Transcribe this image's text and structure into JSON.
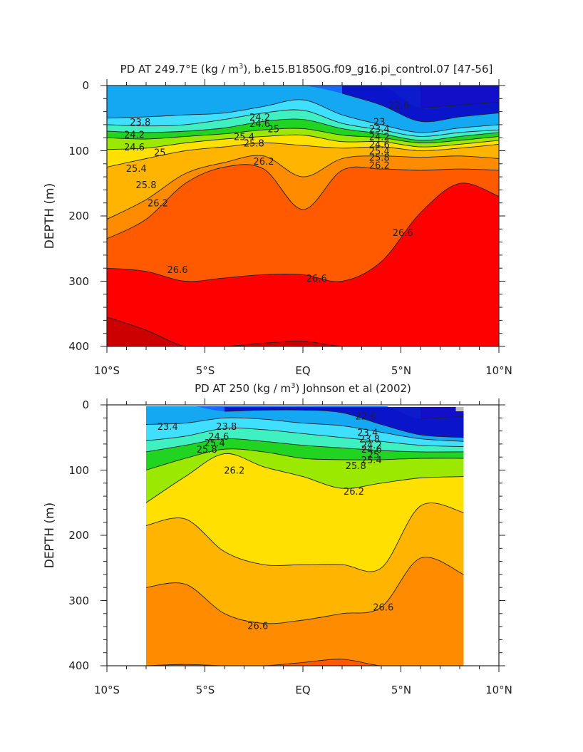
{
  "figure": {
    "panels": [
      {
        "title_pre": "PD AT 249.7°E (kg / m",
        "title_sup": "3",
        "title_post": "), b.e15.B1850G.f09_g16.pi_control.07 [47-56]"
      },
      {
        "title_pre": "PD AT 250 (kg / m",
        "title_sup": "3",
        "title_post": ") Johnson et al (2002)"
      }
    ],
    "ylabel": "DEPTH (m)",
    "xticks": [
      "10°S",
      "5°S",
      "EQ",
      "5°N",
      "10°N"
    ],
    "yticks": [
      "0",
      "100",
      "200",
      "300",
      "400"
    ]
  },
  "colors": {
    "levels_kg_m3": [
      22.0,
      22.4,
      22.8,
      23.2,
      23.6,
      24.0,
      24.4,
      24.8,
      25.2,
      25.6,
      26.0,
      26.4,
      26.8
    ],
    "fills": [
      "#cc00cc",
      "#7a00d6",
      "#0a10c8",
      "#1668ff",
      "#14a8f2",
      "#3fe0ff",
      "#3ff0c0",
      "#21d421",
      "#9be800",
      "#ffe000",
      "#ffb400",
      "#ff8c00",
      "#ff5a00",
      "#ff0000",
      "#cc0000"
    ],
    "contour_line": "#222222",
    "missing_region": "#bdbdbd"
  },
  "chart_data": [
    {
      "type": "heatmap",
      "subtype": "filled contour section",
      "x_axis": {
        "units": "latitude (degrees, negative = S)",
        "range": [
          -10,
          10
        ],
        "tick_labels": [
          "10°S",
          "5°S",
          "EQ",
          "5°N",
          "10°N"
        ]
      },
      "y_axis": {
        "label": "DEPTH (m)",
        "range": [
          0,
          400
        ],
        "inverted": true
      },
      "x_coverage": [
        -10,
        10
      ],
      "x": [
        -10,
        -8,
        -6,
        -4,
        -2,
        0,
        2,
        4,
        6,
        8,
        10
      ],
      "isopycnal_depths_m": [
        {
          "level": 22.0,
          "depth": [
            null,
            null,
            null,
            null,
            null,
            null,
            null,
            null,
            35,
            30,
            25
          ]
        },
        {
          "level": 23.0,
          "depth": [
            null,
            null,
            null,
            null,
            null,
            null,
            12,
            30,
            55,
            48,
            42
          ]
        },
        {
          "level": 23.8,
          "depth": [
            50,
            48,
            45,
            42,
            32,
            22,
            45,
            60,
            72,
            65,
            60
          ]
        },
        {
          "level": 24.2,
          "depth": [
            60,
            62,
            60,
            52,
            42,
            38,
            58,
            68,
            78,
            72,
            68
          ]
        },
        {
          "level": 24.6,
          "depth": [
            70,
            72,
            70,
            65,
            55,
            52,
            66,
            74,
            84,
            78,
            72
          ]
        },
        {
          "level": 25.0,
          "depth": [
            80,
            82,
            78,
            74,
            68,
            66,
            76,
            80,
            88,
            84,
            78
          ]
        },
        {
          "level": 25.4,
          "depth": [
            98,
            96,
            88,
            82,
            78,
            76,
            86,
            86,
            94,
            90,
            84
          ]
        },
        {
          "level": 25.8,
          "depth": [
            125,
            112,
            100,
            94,
            88,
            92,
            96,
            94,
            100,
            96,
            90
          ]
        },
        {
          "level": 26.2,
          "depth": [
            205,
            175,
            135,
            118,
            108,
            140,
            112,
            108,
            110,
            108,
            112
          ]
        },
        {
          "level": 26.4,
          "depth": [
            235,
            205,
            150,
            125,
            128,
            190,
            130,
            128,
            130,
            128,
            130
          ]
        },
        {
          "level": 26.6,
          "depth": [
            280,
            285,
            300,
            295,
            290,
            290,
            300,
            270,
            195,
            150,
            170
          ]
        },
        {
          "level": 26.8,
          "depth": [
            355,
            375,
            400,
            400,
            395,
            392,
            400,
            400,
            400,
            400,
            400
          ]
        }
      ],
      "contour_labels": [
        {
          "text": "23.8",
          "x": -8.3,
          "y": 56
        },
        {
          "text": "24.2",
          "x": -2.2,
          "y": 48
        },
        {
          "text": "24.6",
          "x": -2.2,
          "y": 58
        },
        {
          "text": "25",
          "x": -1.5,
          "y": 66
        },
        {
          "text": "24.2",
          "x": -8.6,
          "y": 75
        },
        {
          "text": "25.4",
          "x": -3.0,
          "y": 78
        },
        {
          "text": "24.6",
          "x": -8.6,
          "y": 94
        },
        {
          "text": "25.8",
          "x": -2.5,
          "y": 88
        },
        {
          "text": "25",
          "x": -7.3,
          "y": 102
        },
        {
          "text": "26.2",
          "x": -2.0,
          "y": 116
        },
        {
          "text": "25.4",
          "x": -8.5,
          "y": 127
        },
        {
          "text": "25.8",
          "x": -8.0,
          "y": 152
        },
        {
          "text": "26.2",
          "x": -7.4,
          "y": 180
        },
        {
          "text": "23",
          "x": 3.9,
          "y": 55
        },
        {
          "text": "23.4",
          "x": 3.9,
          "y": 66
        },
        {
          "text": "24.2",
          "x": 3.9,
          "y": 78
        },
        {
          "text": "24.6",
          "x": 3.9,
          "y": 90
        },
        {
          "text": "25.4",
          "x": 3.9,
          "y": 100
        },
        {
          "text": "25.8",
          "x": 3.9,
          "y": 110
        },
        {
          "text": "26.2",
          "x": 3.9,
          "y": 122
        },
        {
          "text": "22.6",
          "x": 4.9,
          "y": 30
        },
        {
          "text": "26.6",
          "x": -6.4,
          "y": 282
        },
        {
          "text": "26.6",
          "x": 0.7,
          "y": 295
        },
        {
          "text": "26.6",
          "x": 5.1,
          "y": 225
        }
      ]
    },
    {
      "type": "heatmap",
      "subtype": "filled contour section",
      "x_axis": {
        "units": "latitude (degrees, negative = S)",
        "range": [
          -10,
          10
        ],
        "tick_labels": [
          "10°S",
          "5°S",
          "EQ",
          "5°N",
          "10°N"
        ]
      },
      "y_axis": {
        "label": "DEPTH (m)",
        "range": [
          0,
          400
        ],
        "inverted": true
      },
      "x_coverage": [
        -8,
        8.2
      ],
      "x": [
        -8,
        -6,
        -4,
        -2,
        0,
        2,
        4,
        6,
        8.2
      ],
      "isopycnal_depths_m": [
        {
          "level": 22.0,
          "depth": [
            null,
            null,
            null,
            null,
            null,
            null,
            null,
            22,
            18
          ]
        },
        {
          "level": 23.0,
          "depth": [
            null,
            null,
            10,
            8,
            8,
            12,
            30,
            46,
            50
          ]
        },
        {
          "level": 23.4,
          "depth": [
            30,
            28,
            20,
            22,
            28,
            32,
            42,
            52,
            56
          ]
        },
        {
          "level": 24.2,
          "depth": [
            55,
            48,
            36,
            38,
            44,
            50,
            56,
            62,
            64
          ]
        },
        {
          "level": 25.0,
          "depth": [
            72,
            62,
            52,
            56,
            62,
            66,
            70,
            72,
            72
          ]
        },
        {
          "level": 25.8,
          "depth": [
            100,
            82,
            68,
            72,
            82,
            84,
            84,
            82,
            82
          ]
        },
        {
          "level": 26.2,
          "depth": [
            150,
            110,
            75,
            95,
            110,
            128,
            120,
            112,
            110
          ]
        },
        {
          "level": 26.4,
          "depth": [
            185,
            175,
            225,
            245,
            245,
            245,
            250,
            155,
            165
          ]
        },
        {
          "level": 26.6,
          "depth": [
            280,
            275,
            320,
            335,
            330,
            320,
            310,
            235,
            260
          ]
        },
        {
          "level": 26.8,
          "depth": [
            400,
            398,
            400,
            400,
            395,
            390,
            400,
            400,
            400
          ]
        }
      ],
      "contour_labels": [
        {
          "text": "23.4",
          "x": -6.9,
          "y": 33
        },
        {
          "text": "22.6",
          "x": 3.2,
          "y": 17
        },
        {
          "text": "23.4",
          "x": 3.3,
          "y": 42
        },
        {
          "text": "23.8",
          "x": 3.4,
          "y": 52
        },
        {
          "text": "24.2",
          "x": 3.5,
          "y": 61
        },
        {
          "text": "24.6",
          "x": 3.5,
          "y": 68
        },
        {
          "text": "25",
          "x": 3.6,
          "y": 76
        },
        {
          "text": "25.4",
          "x": 3.5,
          "y": 84
        },
        {
          "text": "25.8",
          "x": 2.7,
          "y": 93
        },
        {
          "text": "23.8",
          "x": -3.9,
          "y": 33
        },
        {
          "text": "24.6",
          "x": -4.3,
          "y": 48
        },
        {
          "text": "25.4",
          "x": -4.5,
          "y": 58
        },
        {
          "text": "25.8",
          "x": -4.9,
          "y": 68
        },
        {
          "text": "26.2",
          "x": -3.5,
          "y": 100
        },
        {
          "text": "26.2",
          "x": 2.6,
          "y": 132
        },
        {
          "text": "26.6",
          "x": -2.3,
          "y": 338
        },
        {
          "text": "26.6",
          "x": 4.1,
          "y": 310
        }
      ]
    }
  ]
}
